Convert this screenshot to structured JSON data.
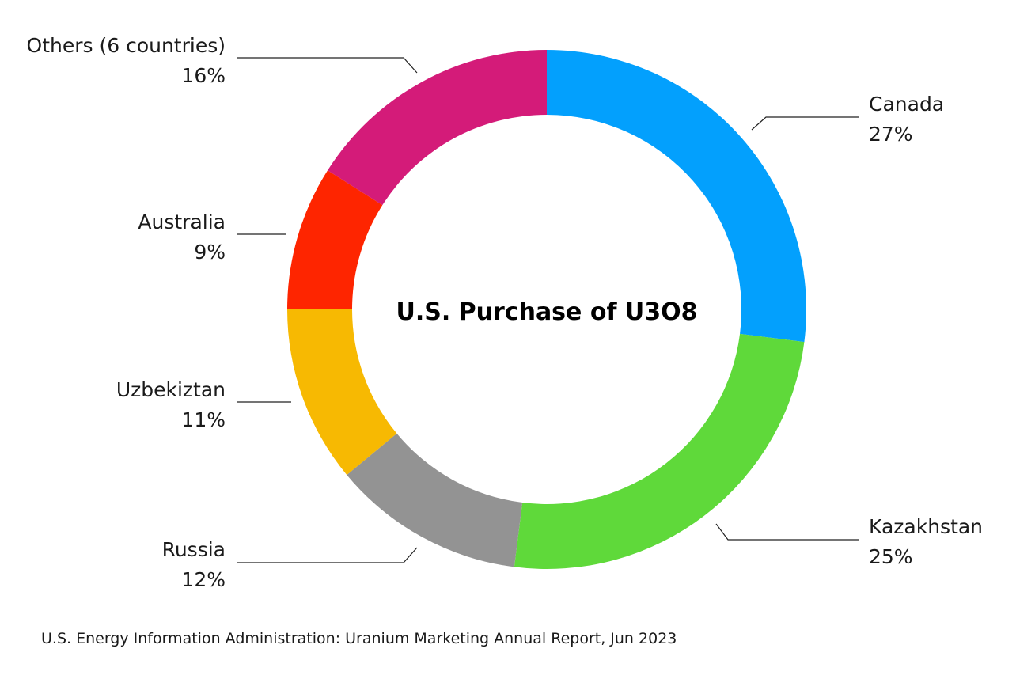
{
  "chart_data": {
    "type": "pie",
    "donut": true,
    "title": "U.S. Purchase of U3O8",
    "slices": [
      {
        "label": "Canada",
        "value": 27,
        "display": "27%",
        "color": "#03a0fd"
      },
      {
        "label": "Kazakhstan",
        "value": 25,
        "display": "25%",
        "color": "#5fd93a"
      },
      {
        "label": "Russia",
        "value": 12,
        "display": "12%",
        "color": "#939393"
      },
      {
        "label": "Uzbekiztan",
        "value": 11,
        "display": "11%",
        "color": "#f7b902"
      },
      {
        "label": "Australia",
        "value": 9,
        "display": "9%",
        "color": "#fe2500"
      },
      {
        "label": "Others (6 countries)",
        "value": 16,
        "display": "16%",
        "color": "#d41b79"
      }
    ]
  },
  "source": "U.S. Energy Information Administration: Uranium Marketing Annual Report, Jun 2023"
}
